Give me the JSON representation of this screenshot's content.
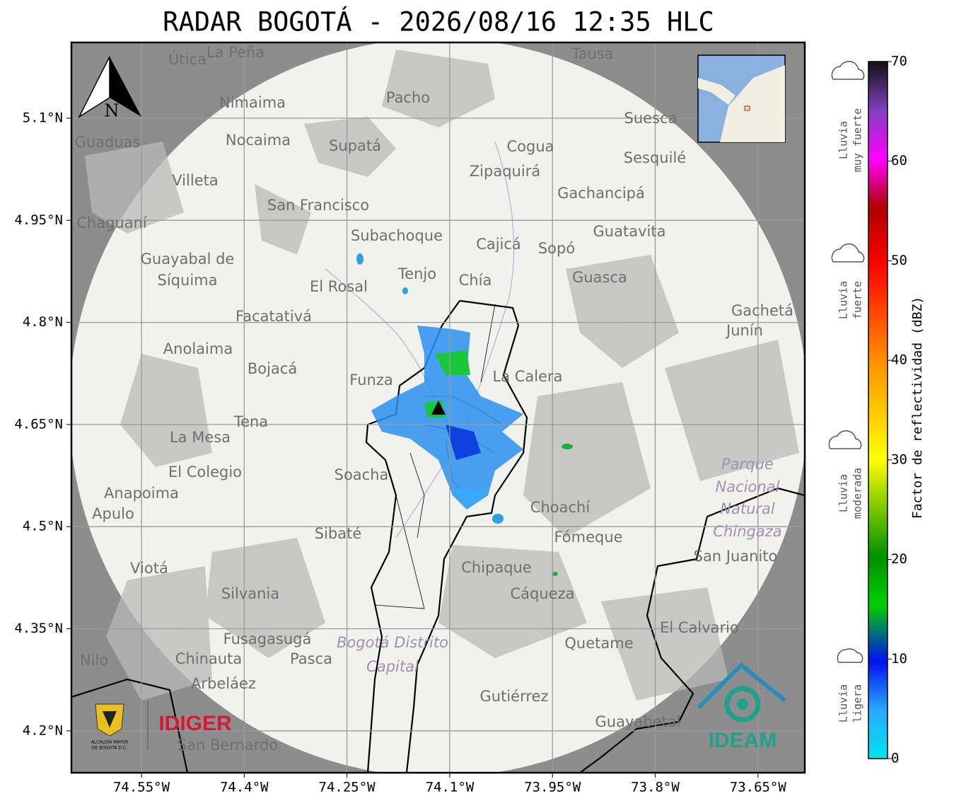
{
  "title": "RADAR BOGOTÁ - 2026/08/16 12:35 HLC",
  "map": {
    "north": "N",
    "lon_ticks": [
      {
        "value": -74.55,
        "label": "74.55°W"
      },
      {
        "value": -74.4,
        "label": "74.4°W"
      },
      {
        "value": -74.25,
        "label": "74.25°W"
      },
      {
        "value": -74.1,
        "label": "74.1°W"
      },
      {
        "value": -73.95,
        "label": "73.95°W"
      },
      {
        "value": -73.8,
        "label": "73.8°W"
      },
      {
        "value": -73.65,
        "label": "73.65°W"
      }
    ],
    "lat_ticks": [
      {
        "value": 5.1,
        "label": "5.1°N"
      },
      {
        "value": 4.95,
        "label": "4.95°N"
      },
      {
        "value": 4.8,
        "label": "4.8°N"
      },
      {
        "value": 4.65,
        "label": "4.65°N"
      },
      {
        "value": 4.5,
        "label": "4.5°N"
      },
      {
        "value": 4.35,
        "label": "4.35°N"
      },
      {
        "value": 4.2,
        "label": "4.2°N"
      }
    ],
    "places": [
      "La Peña",
      "Útica",
      "Tausa",
      "Pacho",
      "Nimaima",
      "Guaduas",
      "Nocaima",
      "Supatá",
      "Suesca",
      "Cogua",
      "Sesquilé",
      "Zipaquirá",
      "Villeta",
      "Gachancipá",
      "San Francisco",
      "Chaguaní",
      "Guatavita",
      "Subachoque",
      "Cajicá",
      "Sopó",
      "Guayabal de",
      "Síquima",
      "Tenjo",
      "Chía",
      "Guasca",
      "El Rosal",
      "Facatativá",
      "Gachetá",
      "Junín",
      "Anolaima",
      "Bojacá",
      "Funza",
      "La Calera",
      "Tena",
      "La Mesa",
      "El Colegio",
      "Soacha",
      "Anapoima",
      "Apulo",
      "Choachí",
      "Sibaté",
      "Fómeque",
      "San Juanito",
      "Viotá",
      "Chipaque",
      "Silvania",
      "Cáqueza",
      "El Calvario",
      "Fusagasugá",
      "Quetame",
      "Chinauta",
      "Pasca",
      "Nilo",
      "Arbeláez",
      "Gutiérrez",
      "Guayabetal",
      "San Bernardo",
      "Parque",
      "Nacional",
      "Natural",
      "Chingaza",
      "Bogotá Distrito",
      "Capital"
    ]
  },
  "legend": {
    "label": "Factor de reflectividad (dBZ)",
    "range": [
      0,
      70
    ],
    "ticks": [
      0,
      10,
      20,
      30,
      40,
      50,
      60,
      70
    ],
    "categories": [
      [
        "Lluvia",
        "muy fuerte"
      ],
      [
        "Lluvia",
        "fuerte"
      ],
      [
        "Lluvia",
        "moderada"
      ],
      [
        "Lluvia",
        "ligera"
      ]
    ]
  },
  "logos": {
    "alcaldia": [
      "ALCALDÍA MAYOR",
      "DE BOGOTÁ D.C."
    ],
    "idiger": "IDIGER",
    "ideam": "IDEAM"
  }
}
